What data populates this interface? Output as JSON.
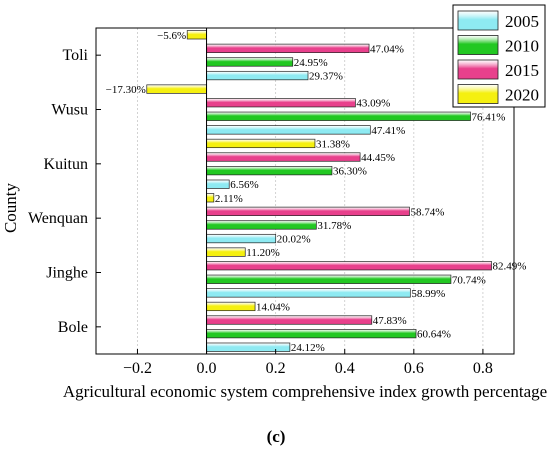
{
  "chart_data": {
    "type": "bar",
    "orientation": "horizontal",
    "panel_label": "(c)",
    "xlabel": "Agricultural economic system comprehensive index growth percentage",
    "ylabel": "County",
    "xlim": [
      -0.32,
      0.89
    ],
    "xticks": [
      -0.2,
      0.0,
      0.2,
      0.4,
      0.6,
      0.8
    ],
    "xtick_labels": [
      "−0.2",
      "0.0",
      "0.2",
      "0.4",
      "0.6",
      "0.8"
    ],
    "grid": true,
    "legend_position": "top-right",
    "categories": [
      "Toli",
      "Wusu",
      "Kuitun",
      "Wenquan",
      "Jinghe",
      "Bole"
    ],
    "series": [
      {
        "name": "2005",
        "color": "#8eeaf2",
        "values": [
          0.2937,
          0.4741,
          0.0656,
          0.2002,
          0.5899,
          0.2412
        ],
        "labels": [
          "29.37%",
          "47.41%",
          "6.56%",
          "20.02%",
          "58.99%",
          "24.12%"
        ]
      },
      {
        "name": "2010",
        "color": "#22c822",
        "values": [
          0.2495,
          0.7641,
          0.363,
          0.3178,
          0.7074,
          0.6064
        ],
        "labels": [
          "24.95%",
          "76.41%",
          "36.30%",
          "31.78%",
          "70.74%",
          "60.64%"
        ]
      },
      {
        "name": "2015",
        "color": "#e8408c",
        "values": [
          0.4704,
          0.4309,
          0.4445,
          0.5874,
          0.8249,
          0.4783
        ],
        "labels": [
          "47.04%",
          "43.09%",
          "44.45%",
          "58.74%",
          "82.49%",
          "47.83%"
        ]
      },
      {
        "name": "2020",
        "color": "#f5f010",
        "values": [
          -0.056,
          -0.173,
          0.3138,
          0.0211,
          0.112,
          0.1404
        ],
        "labels": [
          "−5.6%",
          "−17.30%",
          "31.38%",
          "2.11%",
          "11.20%",
          "14.04%"
        ]
      }
    ]
  }
}
